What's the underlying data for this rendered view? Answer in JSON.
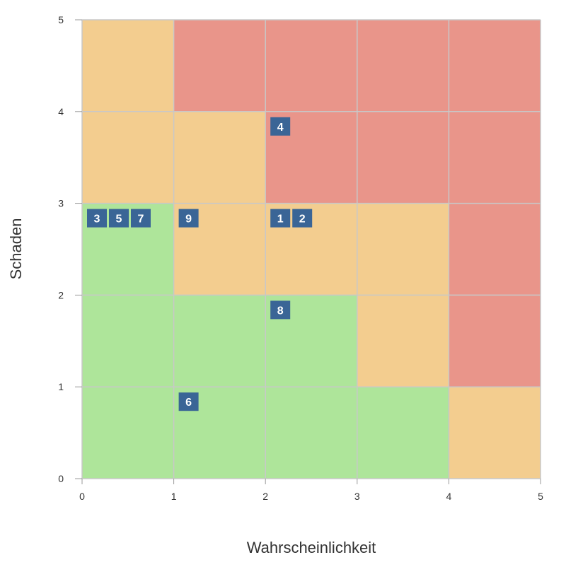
{
  "chart_data": {
    "type": "heatmap",
    "xlabel": "Wahrscheinlichkeit",
    "ylabel": "Schaden",
    "xlim": [
      0,
      5
    ],
    "ylim": [
      0,
      5
    ],
    "xticks": [
      "0",
      "1",
      "2",
      "3",
      "4",
      "5"
    ],
    "yticks": [
      "0",
      "1",
      "2",
      "3",
      "4",
      "5"
    ],
    "grid": true,
    "colors": {
      "low": "#aee59a",
      "medium": "#f3cd8f",
      "high": "#e9958a",
      "marker": "#3a6596",
      "grid": "#c8c8c8"
    },
    "cells_by_row_from_bottom": [
      [
        "low",
        "low",
        "low",
        "low",
        "medium"
      ],
      [
        "low",
        "low",
        "low",
        "medium",
        "high"
      ],
      [
        "low",
        "medium",
        "medium",
        "medium",
        "high"
      ],
      [
        "medium",
        "medium",
        "high",
        "high",
        "high"
      ],
      [
        "medium",
        "high",
        "high",
        "high",
        "high"
      ]
    ],
    "markers": [
      {
        "label": "4",
        "x": 2,
        "y": 3
      },
      {
        "label": "3",
        "x": 0,
        "y": 2
      },
      {
        "label": "5",
        "x": 0,
        "y": 2
      },
      {
        "label": "7",
        "x": 0,
        "y": 2
      },
      {
        "label": "9",
        "x": 1,
        "y": 2
      },
      {
        "label": "1",
        "x": 2,
        "y": 2
      },
      {
        "label": "2",
        "x": 2,
        "y": 2
      },
      {
        "label": "8",
        "x": 2,
        "y": 1
      },
      {
        "label": "6",
        "x": 1,
        "y": 0
      }
    ]
  }
}
